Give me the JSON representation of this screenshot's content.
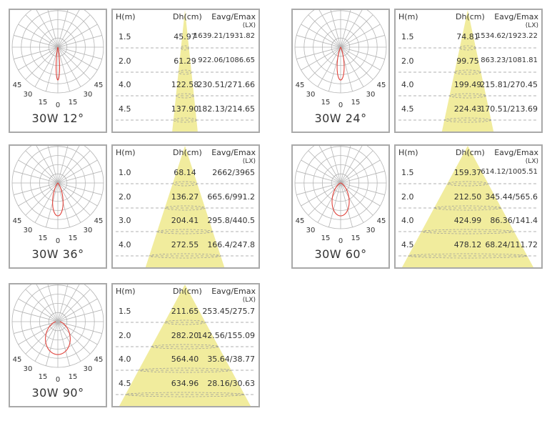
{
  "colors": {
    "curve": "#e0413a",
    "beam": "#f1ec9d",
    "grid": "#b5b5b5",
    "border": "#a9a9a9",
    "dash": "#999999"
  },
  "chart_data": [
    {
      "type": "table",
      "title": "30W 12°",
      "beam_angle": 12,
      "polar_labels": [
        "45",
        "30",
        "15",
        "0",
        "15",
        "30",
        "45"
      ],
      "headers": {
        "h": "H(m)",
        "dh": "Dh(cm)",
        "e": "Eavg/Emax",
        "unit": "(LX)"
      },
      "rows": [
        {
          "h": "1.5",
          "dh": "45.97",
          "e": "1639.21/1931.82"
        },
        {
          "h": "2.0",
          "dh": "61.29",
          "e": "922.06/1086.65"
        },
        {
          "h": "4.0",
          "dh": "122.58",
          "e": "230.51/271.66"
        },
        {
          "h": "4.5",
          "dh": "137.90",
          "e": "182.13/214.65"
        }
      ]
    },
    {
      "type": "table",
      "title": "30W 24°",
      "beam_angle": 24,
      "polar_labels": [
        "45",
        "30",
        "15",
        "0",
        "15",
        "30",
        "45"
      ],
      "headers": {
        "h": "H(m)",
        "dh": "Dh(cm)",
        "e": "Eavg/Emax",
        "unit": "(LX)"
      },
      "rows": [
        {
          "h": "1.5",
          "dh": "74.81",
          "e": "1534.62/1923.22"
        },
        {
          "h": "2.0",
          "dh": "99.75",
          "e": "863.23/1081.81"
        },
        {
          "h": "4.0",
          "dh": "199.49",
          "e": "215.81/270.45"
        },
        {
          "h": "4.5",
          "dh": "224.43",
          "e": "170.51/213.69"
        }
      ]
    },
    {
      "type": "table",
      "title": "30W 36°",
      "beam_angle": 36,
      "polar_labels": [
        "45",
        "30",
        "15",
        "0",
        "15",
        "30",
        "45"
      ],
      "headers": {
        "h": "H(m)",
        "dh": "Dh(cm)",
        "e": "Eavg/Emax",
        "unit": "(LX)"
      },
      "rows": [
        {
          "h": "1.0",
          "dh": "68.14",
          "e": "2662/3965"
        },
        {
          "h": "2.0",
          "dh": "136.27",
          "e": "665.6/991.2"
        },
        {
          "h": "3.0",
          "dh": "204.41",
          "e": "295.8/440.5"
        },
        {
          "h": "4.0",
          "dh": "272.55",
          "e": "166.4/247.8"
        }
      ]
    },
    {
      "type": "table",
      "title": "30W 60°",
      "beam_angle": 60,
      "polar_labels": [
        "45",
        "30",
        "15",
        "0",
        "15",
        "30",
        "45"
      ],
      "headers": {
        "h": "H(m)",
        "dh": "Dh(cm)",
        "e": "Eavg/Emax",
        "unit": "(LX)"
      },
      "rows": [
        {
          "h": "1.5",
          "dh": "159.37",
          "e": "614.12/1005.51"
        },
        {
          "h": "2.0",
          "dh": "212.50",
          "e": "345.44/565.6"
        },
        {
          "h": "4.0",
          "dh": "424.99",
          "e": "86.36/141.4"
        },
        {
          "h": "4.5",
          "dh": "478.12",
          "e": "68.24/111.72"
        }
      ]
    },
    {
      "type": "table",
      "title": "30W 90°",
      "beam_angle": 90,
      "polar_labels": [
        "45",
        "30",
        "15",
        "0",
        "15",
        "30",
        "45"
      ],
      "headers": {
        "h": "H(m)",
        "dh": "Dh(cm)",
        "e": "Eavg/Emax",
        "unit": "(LX)"
      },
      "rows": [
        {
          "h": "1.5",
          "dh": "211.65",
          "e": "253.45/275.7"
        },
        {
          "h": "2.0",
          "dh": "282.20",
          "e": "142.56/155.09"
        },
        {
          "h": "4.0",
          "dh": "564.40",
          "e": "35.64/38.77"
        },
        {
          "h": "4.5",
          "dh": "634.96",
          "e": "28.16/30.63"
        }
      ]
    }
  ]
}
